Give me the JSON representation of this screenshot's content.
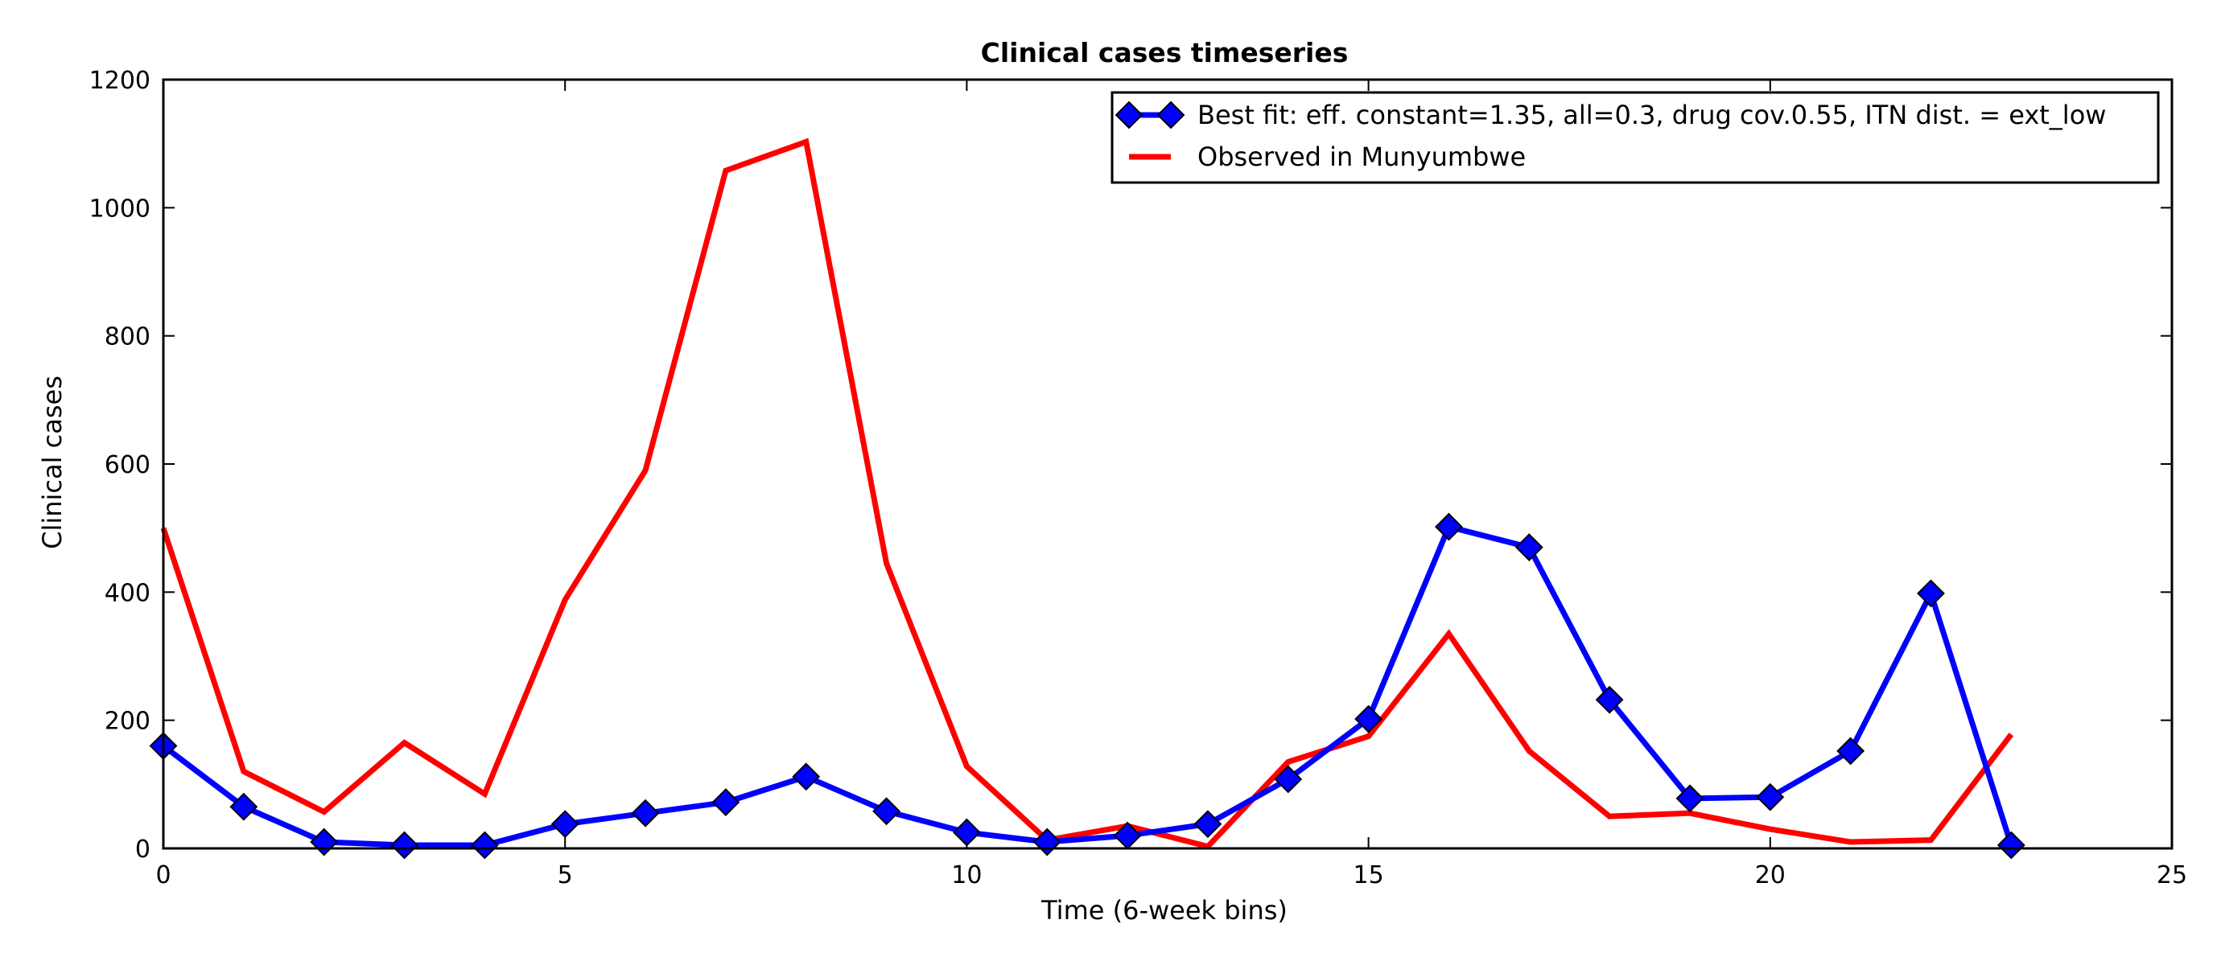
{
  "chart_data": {
    "type": "line",
    "title": "Clinical cases timeseries",
    "xlabel": "Time (6-week bins)",
    "ylabel": "Clinical cases",
    "xlim": [
      0,
      25
    ],
    "ylim": [
      0,
      1200
    ],
    "xticks": [
      "0",
      "5",
      "10",
      "15",
      "20",
      "25"
    ],
    "yticks": [
      "0",
      "200",
      "400",
      "600",
      "800",
      "1000",
      "1200"
    ],
    "grid": false,
    "legend_position": "top-right",
    "series": [
      {
        "name": "Best fit: eff. constant=1.35, all=0.3, drug cov.0.55, ITN dist. = ext_low",
        "color": "#0000ff",
        "marker": "diamond",
        "x": [
          0,
          1,
          2,
          3,
          4,
          5,
          6,
          7,
          8,
          9,
          10,
          11,
          12,
          13,
          14,
          15,
          16,
          17,
          18,
          19,
          20,
          21,
          22,
          23
        ],
        "values": [
          160,
          65,
          10,
          5,
          5,
          38,
          55,
          72,
          112,
          58,
          25,
          10,
          20,
          38,
          108,
          202,
          502,
          470,
          232,
          78,
          80,
          152,
          398,
          5
        ]
      },
      {
        "name": "Observed in Munyumbwe",
        "color": "#ff0000",
        "marker": "none",
        "x": [
          0,
          1,
          2,
          3,
          4,
          5,
          6,
          7,
          8,
          9,
          10,
          11,
          12,
          13,
          14,
          15,
          16,
          17,
          18,
          19,
          20,
          21,
          22,
          23
        ],
        "values": [
          500,
          120,
          57,
          165,
          85,
          388,
          590,
          1058,
          1103,
          445,
          128,
          13,
          35,
          3,
          135,
          175,
          335,
          152,
          50,
          55,
          30,
          10,
          13,
          178
        ]
      }
    ]
  }
}
